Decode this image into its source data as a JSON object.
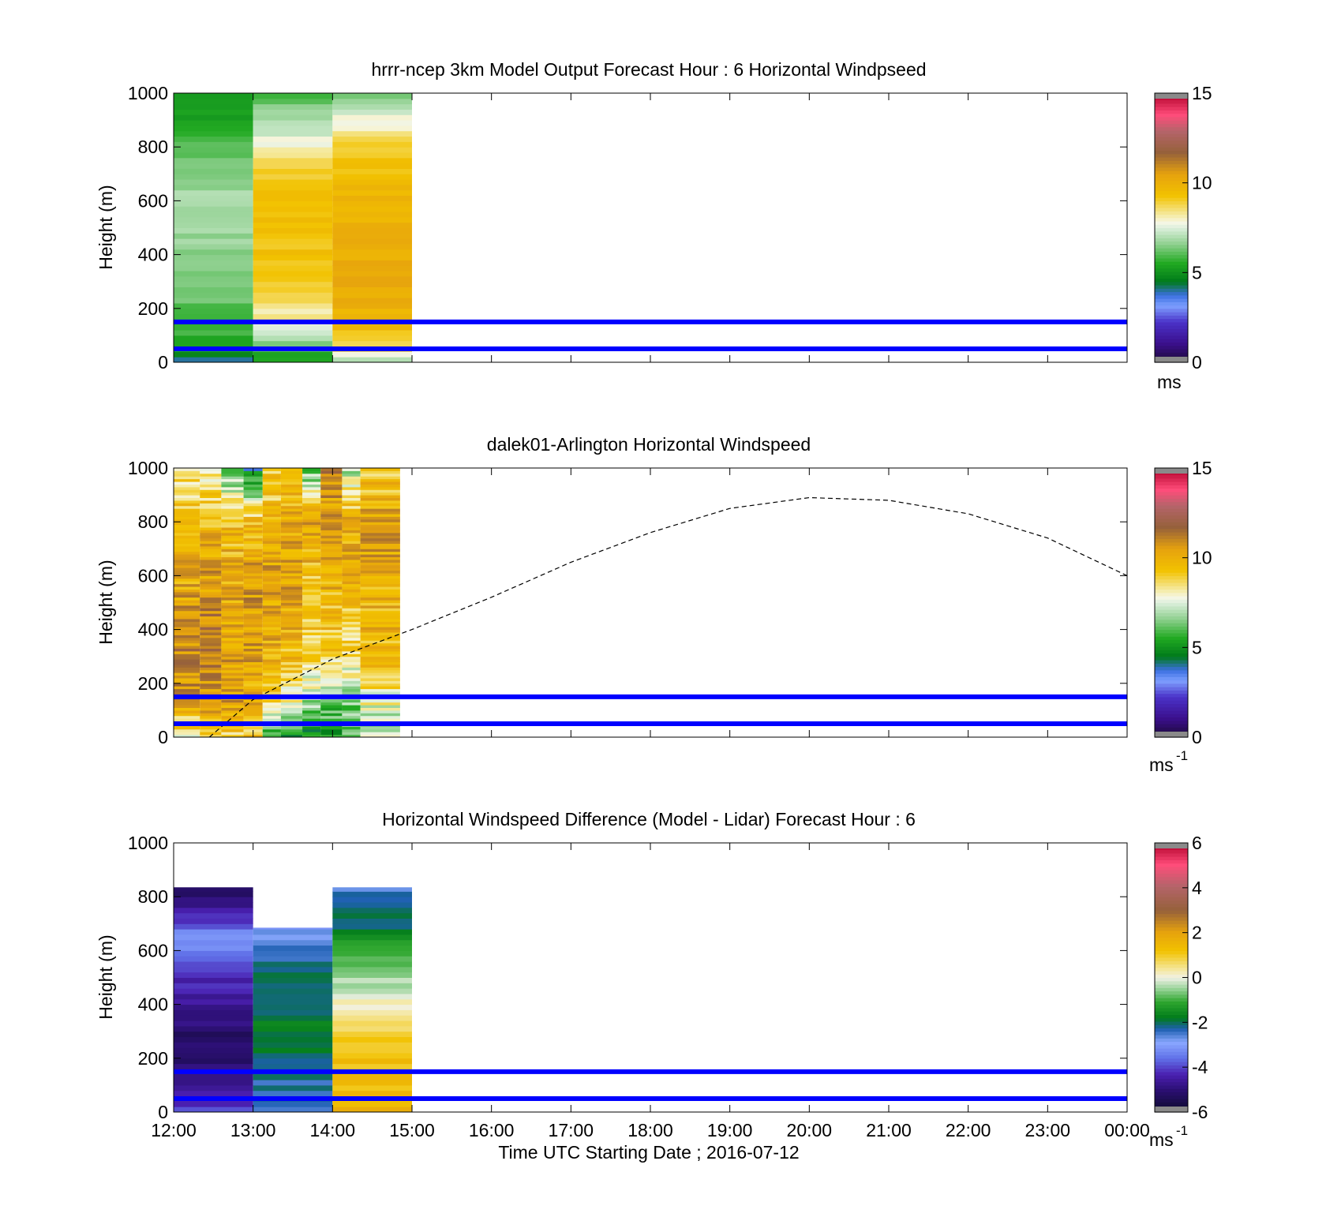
{
  "figure": {
    "xlabel": "Time UTC  Starting Date ; 2016-07-12",
    "x_ticks": [
      "12:00",
      "13:00",
      "14:00",
      "15:00",
      "16:00",
      "17:00",
      "18:00",
      "19:00",
      "20:00",
      "21:00",
      "22:00",
      "23:00",
      "00:00"
    ],
    "reference_lines_m": [
      50,
      150
    ],
    "reference_line_color": "#0000ff"
  },
  "chart_data": [
    {
      "type": "heatmap",
      "title": "hrrr-ncep 3km Model Output   Forecast Hour : 6 Horizontal Windpseed",
      "ylabel": "Height (m)",
      "ylim": [
        0,
        1000
      ],
      "y_ticks": [
        0,
        200,
        400,
        600,
        800,
        1000
      ],
      "xlim_hours": [
        0,
        12
      ],
      "colorbar": {
        "range": [
          0,
          15
        ],
        "ticks": [
          0,
          5,
          10,
          15
        ],
        "unit_label": "ms",
        "unit_sup": ""
      },
      "columns_approx_ms": [
        {
          "start_hour": 0,
          "end_hour": 1,
          "profile": [
            [
              0,
              4
            ],
            [
              50,
              5.5
            ],
            [
              150,
              5.8
            ],
            [
              300,
              6.5
            ],
            [
              600,
              7
            ],
            [
              800,
              6
            ],
            [
              900,
              5.5
            ],
            [
              1000,
              5
            ]
          ]
        },
        {
          "start_hour": 1,
          "end_hour": 2,
          "profile": [
            [
              0,
              5
            ],
            [
              50,
              6
            ],
            [
              100,
              7.5
            ],
            [
              150,
              8
            ],
            [
              300,
              9.2
            ],
            [
              650,
              9.5
            ],
            [
              800,
              8
            ],
            [
              900,
              6.8
            ],
            [
              1000,
              6
            ]
          ]
        },
        {
          "start_hour": 2,
          "end_hour": 3,
          "profile": [
            [
              0,
              7
            ],
            [
              50,
              8.5
            ],
            [
              150,
              9.8
            ],
            [
              300,
              10.2
            ],
            [
              650,
              9.6
            ],
            [
              800,
              9
            ],
            [
              900,
              7.8
            ],
            [
              1000,
              6
            ]
          ]
        }
      ],
      "overlay_curve": null
    },
    {
      "type": "heatmap",
      "title": "dalek01-Arlington  Horizontal Windspeed",
      "ylabel": "Height (m)",
      "ylim": [
        0,
        1000
      ],
      "y_ticks": [
        0,
        200,
        400,
        600,
        800,
        1000
      ],
      "xlim_hours": [
        0,
        12
      ],
      "colorbar": {
        "range": [
          0,
          15
        ],
        "ticks": [
          0,
          5,
          10,
          15
        ],
        "unit_label": "ms",
        "unit_sup": "-1"
      },
      "columns_approx_ms": [
        {
          "start_hour": 0,
          "end_hour": 0.33,
          "profile": [
            [
              0,
              8
            ],
            [
              150,
              10.5
            ],
            [
              300,
              11
            ],
            [
              600,
              10
            ],
            [
              800,
              9.5
            ],
            [
              1000,
              8.5
            ]
          ]
        },
        {
          "start_hour": 0.33,
          "end_hour": 0.6,
          "profile": [
            [
              0,
              9
            ],
            [
              150,
              10.8
            ],
            [
              300,
              11.2
            ],
            [
              600,
              10.5
            ],
            [
              800,
              9.5
            ],
            [
              1000,
              8
            ]
          ]
        },
        {
          "start_hour": 0.6,
          "end_hour": 0.88,
          "profile": [
            [
              0,
              9
            ],
            [
              150,
              10.5
            ],
            [
              300,
              10.5
            ],
            [
              600,
              10
            ],
            [
              800,
              9.5
            ],
            [
              1000,
              6
            ]
          ]
        },
        {
          "start_hour": 0.88,
          "end_hour": 1.12,
          "profile": [
            [
              0,
              9
            ],
            [
              150,
              10
            ],
            [
              300,
              10.5
            ],
            [
              600,
              10.5
            ],
            [
              800,
              9.5
            ],
            [
              1000,
              4.5
            ]
          ]
        },
        {
          "start_hour": 1.12,
          "end_hour": 1.35,
          "profile": [
            [
              0,
              5
            ],
            [
              150,
              9.5
            ],
            [
              300,
              10
            ],
            [
              600,
              10.5
            ],
            [
              800,
              9.5
            ],
            [
              1000,
              9
            ]
          ]
        },
        {
          "start_hour": 1.35,
          "end_hour": 1.62,
          "profile": [
            [
              0,
              5
            ],
            [
              150,
              8
            ],
            [
              300,
              9.5
            ],
            [
              600,
              10.5
            ],
            [
              800,
              10
            ],
            [
              1000,
              9
            ]
          ]
        },
        {
          "start_hour": 1.62,
          "end_hour": 1.85,
          "profile": [
            [
              0,
              4.5
            ],
            [
              150,
              7
            ],
            [
              300,
              9
            ],
            [
              600,
              9.5
            ],
            [
              800,
              10.5
            ],
            [
              1000,
              6
            ]
          ]
        },
        {
          "start_hour": 1.85,
          "end_hour": 2.12,
          "profile": [
            [
              0,
              5
            ],
            [
              150,
              6.5
            ],
            [
              300,
              9
            ],
            [
              600,
              10
            ],
            [
              800,
              10.2
            ],
            [
              1000,
              11
            ]
          ]
        },
        {
          "start_hour": 2.12,
          "end_hour": 2.35,
          "profile": [
            [
              0,
              6
            ],
            [
              150,
              6.8
            ],
            [
              300,
              8.5
            ],
            [
              600,
              10
            ],
            [
              800,
              10
            ],
            [
              1000,
              7
            ]
          ]
        },
        {
          "start_hour": 2.35,
          "end_hour": 2.85,
          "profile": [
            [
              0,
              7
            ],
            [
              150,
              8
            ],
            [
              300,
              9.5
            ],
            [
              600,
              10
            ],
            [
              800,
              10.5
            ],
            [
              1000,
              9
            ]
          ]
        }
      ],
      "overlay_curve": {
        "style": "dashed",
        "points": [
          [
            0.45,
            0
          ],
          [
            1,
            140
          ],
          [
            2,
            290
          ],
          [
            3,
            400
          ],
          [
            4,
            520
          ],
          [
            5,
            650
          ],
          [
            6,
            760
          ],
          [
            7,
            850
          ],
          [
            8,
            890
          ],
          [
            9,
            880
          ],
          [
            10,
            830
          ],
          [
            11,
            740
          ],
          [
            12,
            600
          ]
        ]
      }
    },
    {
      "type": "heatmap",
      "title": "Horizontal Windspeed Difference (Model - Lidar) Forecast Hour : 6",
      "ylabel": "Height (m)",
      "ylim": [
        0,
        1000
      ],
      "y_ticks": [
        0,
        200,
        400,
        600,
        800,
        1000
      ],
      "xlim_hours": [
        0,
        12
      ],
      "colorbar": {
        "range": [
          -6,
          6
        ],
        "ticks": [
          -6,
          -4,
          -2,
          0,
          2,
          4,
          6
        ],
        "unit_label": "ms",
        "unit_sup": "-1"
      },
      "columns_approx_ms": [
        {
          "start_hour": 0,
          "end_hour": 1,
          "top_m": 835,
          "profile": [
            [
              0,
              -4
            ],
            [
              100,
              -4.5
            ],
            [
              200,
              -5.2
            ],
            [
              350,
              -5
            ],
            [
              450,
              -4.5
            ],
            [
              550,
              -3.8
            ],
            [
              640,
              -3
            ],
            [
              700,
              -4
            ],
            [
              780,
              -5
            ],
            [
              835,
              -5.5
            ]
          ]
        },
        {
          "start_hour": 1,
          "end_hour": 2,
          "top_m": 685,
          "profile": [
            [
              0,
              -2.5
            ],
            [
              200,
              -2
            ],
            [
              400,
              -1.8
            ],
            [
              550,
              -2.2
            ],
            [
              685,
              -3
            ]
          ]
        },
        {
          "start_hour": 2,
          "end_hour": 3,
          "top_m": 835,
          "profile": [
            [
              0,
              1.5
            ],
            [
              200,
              1.2
            ],
            [
              350,
              0.5
            ],
            [
              450,
              -0.3
            ],
            [
              600,
              -1
            ],
            [
              700,
              -2
            ],
            [
              835,
              -2.5
            ]
          ]
        }
      ],
      "overlay_curve": null
    }
  ]
}
